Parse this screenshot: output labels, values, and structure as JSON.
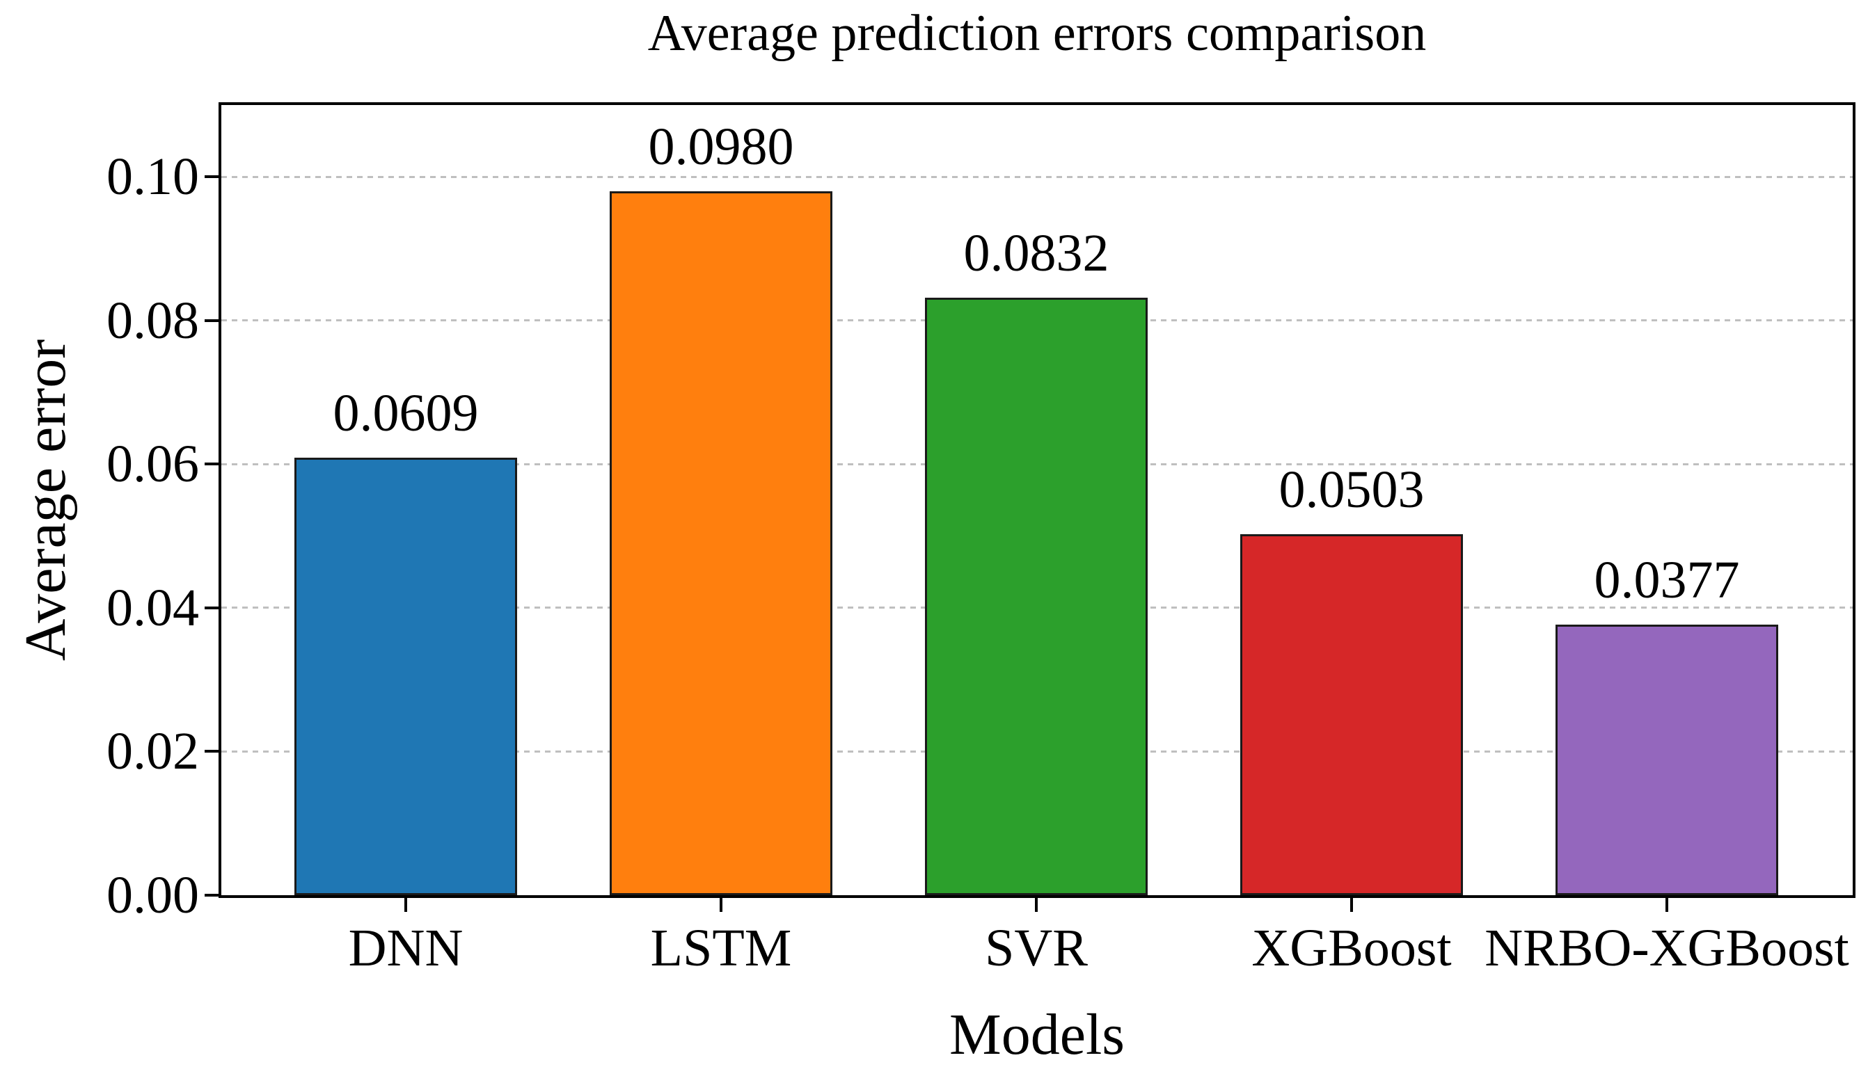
{
  "figure": {
    "title": "Average prediction errors comparison",
    "xlabel": "Models",
    "ylabel": "Average error"
  },
  "chart_data": {
    "type": "bar",
    "title": "Average prediction errors comparison",
    "xlabel": "Models",
    "ylabel": "Average error",
    "categories": [
      "DNN",
      "LSTM",
      "SVR",
      "XGBoost",
      "NRBO-XGBoost"
    ],
    "values": [
      0.0609,
      0.098,
      0.0832,
      0.0503,
      0.0377
    ],
    "value_labels": [
      "0.0609",
      "0.0980",
      "0.0832",
      "0.0503",
      "0.0377"
    ],
    "bar_colors": [
      "#1f77b4",
      "#ff7f0e",
      "#2ca02c",
      "#d62728",
      "#9467bd"
    ],
    "bar_edge_color": "#1a1a1a",
    "ylim": [
      0,
      0.11
    ],
    "yticks": [
      0.0,
      0.02,
      0.04,
      0.06,
      0.08,
      0.1
    ],
    "ytick_labels": [
      "0.00",
      "0.02",
      "0.04",
      "0.06",
      "0.08",
      "0.10"
    ],
    "grid": "horizontal-dashed",
    "grid_color": "#bfbfbf",
    "legend": "none"
  }
}
